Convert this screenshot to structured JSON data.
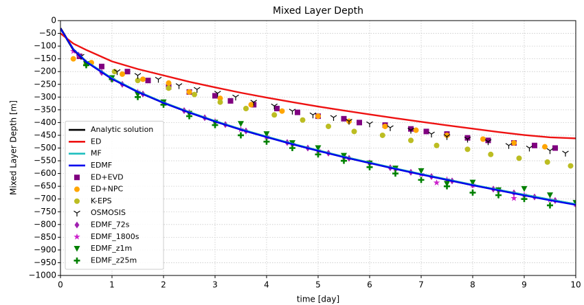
{
  "chart_data": {
    "type": "line",
    "title": "Mixed Layer Depth",
    "x_label": "time [day]",
    "y_label": "Mixed Layer Depth [m]",
    "xlim": [
      0,
      10
    ],
    "ylim": [
      -1000,
      0
    ],
    "grid": true,
    "legend": "lower left",
    "xticks": [
      0,
      1,
      2,
      3,
      4,
      5,
      6,
      7,
      8,
      9,
      10
    ],
    "yticks": [
      0,
      {
        "value": -50,
        "label": "−50"
      },
      {
        "value": -100,
        "label": "−100"
      },
      {
        "value": -150,
        "label": "−150"
      },
      {
        "value": -200,
        "label": "−200"
      },
      {
        "value": -250,
        "label": "−250"
      },
      {
        "value": -300,
        "label": "−300"
      },
      {
        "value": -350,
        "label": "−350"
      },
      {
        "value": -400,
        "label": "−400"
      },
      {
        "value": -450,
        "label": "−450"
      },
      {
        "value": -500,
        "label": "−500"
      },
      {
        "value": -550,
        "label": "−550"
      },
      {
        "value": -600,
        "label": "−600"
      },
      {
        "value": -650,
        "label": "−650"
      },
      {
        "value": -700,
        "label": "−700"
      },
      {
        "value": -750,
        "label": "−750"
      },
      {
        "value": -800,
        "label": "−800"
      },
      {
        "value": -850,
        "label": "−850"
      },
      {
        "value": -900,
        "label": "−900"
      },
      {
        "value": -950,
        "label": "−950"
      },
      {
        "value": -1000,
        "label": "−1000"
      }
    ],
    "x": [
      0,
      0.25,
      0.5,
      1,
      1.5,
      2,
      2.5,
      3,
      3.5,
      4,
      4.5,
      5,
      5.5,
      6,
      6.5,
      7,
      7.5,
      8,
      8.5,
      9,
      9.5,
      10
    ],
    "series": [
      {
        "name": "Analytic solution",
        "color": "#000000",
        "values": [
          -30,
          -114,
          -161,
          -228,
          -279,
          -322,
          -360,
          -395,
          -427,
          -456,
          -484,
          -510,
          -535,
          -558,
          -581,
          -603,
          -624,
          -645,
          -665,
          -684,
          -703,
          -721
        ]
      },
      {
        "name": "ED",
        "color": "#ee1111",
        "values": [
          -50,
          -90,
          -115,
          -160,
          -190,
          -215,
          -240,
          -262,
          -283,
          -302,
          -320,
          -337,
          -353,
          -368,
          -383,
          -397,
          -411,
          -424,
          -437,
          -449,
          -458,
          -462
        ]
      },
      {
        "name": "MF",
        "color": "#1fbfbf",
        "values": [
          -32,
          -112,
          -160,
          -226,
          -278,
          -321,
          -359,
          -394,
          -426,
          -455,
          -483,
          -509,
          -534,
          -557,
          -580,
          -602,
          -623,
          -644,
          -664,
          -683,
          -702,
          -720
        ]
      },
      {
        "name": "EDMF",
        "color": "#0000ee",
        "values": [
          -31,
          -113,
          -162,
          -229,
          -280,
          -323,
          -361,
          -396,
          -428,
          -457,
          -485,
          -511,
          -536,
          -559,
          -582,
          -604,
          -625,
          -646,
          -666,
          -686,
          -705,
          -723
        ]
      },
      {
        "name": "ED+EVD",
        "color": "#800080",
        "marker": "square",
        "x": [
          0.37,
          0.8,
          1.3,
          1.7,
          2.1,
          2.5,
          3.0,
          3.3,
          3.75,
          4.2,
          4.6,
          5.0,
          5.5,
          5.8,
          6.3,
          6.8,
          7.1,
          7.5,
          7.9,
          8.3,
          8.8,
          9.2,
          9.6
        ],
        "values": [
          -140,
          -180,
          -200,
          -235,
          -260,
          -280,
          -295,
          -315,
          -330,
          -345,
          -360,
          -375,
          -385,
          -400,
          -410,
          -425,
          -435,
          -445,
          -460,
          -470,
          -480,
          -490,
          -500
        ]
      },
      {
        "name": "ED+NPC",
        "color": "#ffa500",
        "marker": "circle",
        "x": [
          0.25,
          0.6,
          1.2,
          1.6,
          2.1,
          2.5,
          3.1,
          3.7,
          4.3,
          5.0,
          5.6,
          6.3,
          6.9,
          7.5,
          8.2,
          8.8,
          9.4
        ],
        "values": [
          -150,
          -165,
          -210,
          -230,
          -245,
          -280,
          -305,
          -330,
          -355,
          -375,
          -395,
          -415,
          -430,
          -450,
          -465,
          -480,
          -495
        ]
      },
      {
        "name": "K-EPS",
        "color": "#bcbd22",
        "marker": "circle",
        "x": [
          0.5,
          1.05,
          1.5,
          2.1,
          2.6,
          3.1,
          3.6,
          4.15,
          4.7,
          5.2,
          5.7,
          6.25,
          6.8,
          7.3,
          7.9,
          8.35,
          8.9,
          9.45,
          9.9
        ],
        "values": [
          -170,
          -200,
          -235,
          -265,
          -290,
          -320,
          -345,
          -370,
          -390,
          -415,
          -435,
          -450,
          -470,
          -490,
          -505,
          -525,
          -540,
          -555,
          -570
        ]
      },
      {
        "name": "OSMOSIS",
        "color": "#000000",
        "marker": "tri_down",
        "x": [
          0.4,
          1.1,
          1.5,
          1.9,
          2.3,
          2.65,
          3.05,
          3.4,
          3.75,
          4.15,
          4.5,
          4.9,
          5.3,
          5.6,
          6.0,
          6.4,
          6.8,
          7.2,
          7.5,
          7.9,
          8.3,
          8.7,
          9.1,
          9.5,
          9.8
        ],
        "values": [
          -140,
          -200,
          -215,
          -230,
          -255,
          -270,
          -285,
          -300,
          -320,
          -335,
          -355,
          -370,
          -380,
          -395,
          -405,
          -420,
          -430,
          -445,
          -455,
          -465,
          -475,
          -490,
          -500,
          -510,
          -520
        ]
      },
      {
        "name": "EDMF_72s",
        "color": "#a020b0",
        "marker": "diamond",
        "x": [
          0.35,
          0.8,
          1.2,
          1.6,
          2.0,
          2.4,
          2.8,
          3.2,
          3.6,
          4.0,
          4.4,
          4.8,
          5.2,
          5.6,
          6.0,
          6.4,
          6.8,
          7.2,
          7.6,
          8.0,
          8.4,
          8.8,
          9.2,
          9.6,
          10.0
        ],
        "values": [
          -135,
          -204,
          -250,
          -288,
          -322,
          -353,
          -381,
          -408,
          -433,
          -456,
          -478,
          -500,
          -520,
          -540,
          -558,
          -577,
          -595,
          -612,
          -629,
          -645,
          -661,
          -676,
          -692,
          -706,
          -721
        ]
      },
      {
        "name": "EDMF_1800s",
        "color": "#cc22cc",
        "marker": "star",
        "x": [
          0.25,
          0.5,
          1.0,
          1.5,
          2.0,
          2.5,
          3.0,
          3.5,
          4.0,
          4.5,
          5.0,
          5.5,
          6.0,
          6.5,
          7.0,
          7.3,
          7.5,
          8.0,
          8.5,
          8.8,
          9.0,
          9.5,
          10.0
        ],
        "values": [
          -120,
          -165,
          -230,
          -280,
          -322,
          -360,
          -395,
          -427,
          -456,
          -484,
          -510,
          -535,
          -558,
          -581,
          -603,
          -636,
          -624,
          -645,
          -665,
          -697,
          -684,
          -703,
          -721
        ]
      },
      {
        "name": "EDMF_z1m",
        "color": "#008000",
        "marker": "triangle_down",
        "x": [
          0.5,
          1.0,
          1.5,
          2.0,
          2.5,
          3.0,
          3.5,
          4.0,
          4.5,
          5.0,
          5.5,
          6.0,
          6.5,
          7.0,
          7.5,
          8.0,
          8.5,
          9.0,
          9.5,
          10.0
        ],
        "values": [
          -170,
          -225,
          -290,
          -320,
          -365,
          -400,
          -405,
          -445,
          -480,
          -500,
          -530,
          -560,
          -580,
          -590,
          -640,
          -635,
          -665,
          -660,
          -685,
          -715
        ]
      },
      {
        "name": "EDMF_z25m",
        "color": "#008000",
        "marker": "plus",
        "x": [
          0.5,
          1.0,
          1.5,
          2.0,
          2.5,
          3.0,
          3.5,
          4.0,
          4.5,
          5.0,
          5.5,
          6.0,
          6.5,
          7.0,
          7.5,
          8.0,
          8.5,
          9.0,
          9.5
        ],
        "values": [
          -175,
          -230,
          -300,
          -330,
          -375,
          -410,
          -450,
          -475,
          -500,
          -525,
          -550,
          -575,
          -600,
          -625,
          -650,
          -675,
          -685,
          -700,
          -725
        ]
      }
    ]
  }
}
